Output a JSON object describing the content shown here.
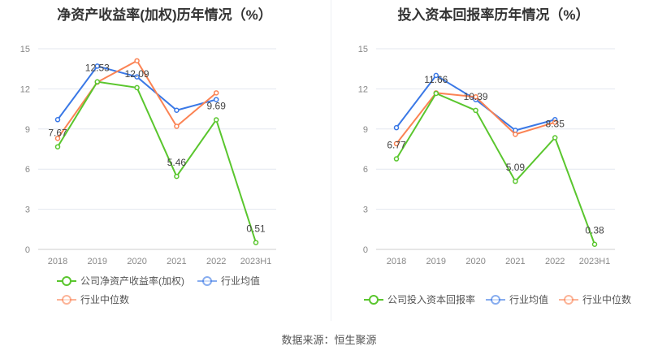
{
  "source": "数据来源：恒生聚源",
  "chart_data": [
    {
      "type": "line",
      "title": "净资产收益率(加权)历年情况（%）",
      "categories": [
        "2018",
        "2019",
        "2020",
        "2021",
        "2022",
        "2023H1"
      ],
      "ylim": [
        0,
        15
      ],
      "yticks": [
        0,
        3,
        6,
        9,
        12,
        15
      ],
      "grid": true,
      "series": [
        {
          "name": "公司净资产收益率(加权)",
          "color": "#5ac62e",
          "values": [
            7.67,
            12.53,
            12.09,
            5.46,
            9.69,
            0.51
          ],
          "labels": true
        },
        {
          "name": "行业均值",
          "color": "#3a78e6",
          "values": [
            9.7,
            13.7,
            12.9,
            10.4,
            11.2,
            null
          ]
        },
        {
          "name": "行业中位数",
          "color": "#fb8354",
          "values": [
            8.3,
            12.5,
            14.1,
            9.2,
            11.7,
            null
          ]
        }
      ]
    },
    {
      "type": "line",
      "title": "投入资本回报率历年情况（%）",
      "categories": [
        "2018",
        "2019",
        "2020",
        "2021",
        "2022",
        "2023H1"
      ],
      "ylim": [
        0,
        15
      ],
      "yticks": [
        0,
        3,
        6,
        9,
        12,
        15
      ],
      "grid": true,
      "series": [
        {
          "name": "公司投入资本回报率",
          "color": "#5ac62e",
          "values": [
            6.77,
            11.66,
            10.39,
            5.09,
            8.35,
            0.38
          ],
          "labels": true
        },
        {
          "name": "行业均值",
          "color": "#3a78e6",
          "values": [
            9.1,
            13.0,
            11.2,
            8.9,
            9.7,
            null
          ]
        },
        {
          "name": "行业中位数",
          "color": "#fb8354",
          "values": [
            7.9,
            11.7,
            11.4,
            8.6,
            9.5,
            null
          ]
        }
      ]
    }
  ]
}
